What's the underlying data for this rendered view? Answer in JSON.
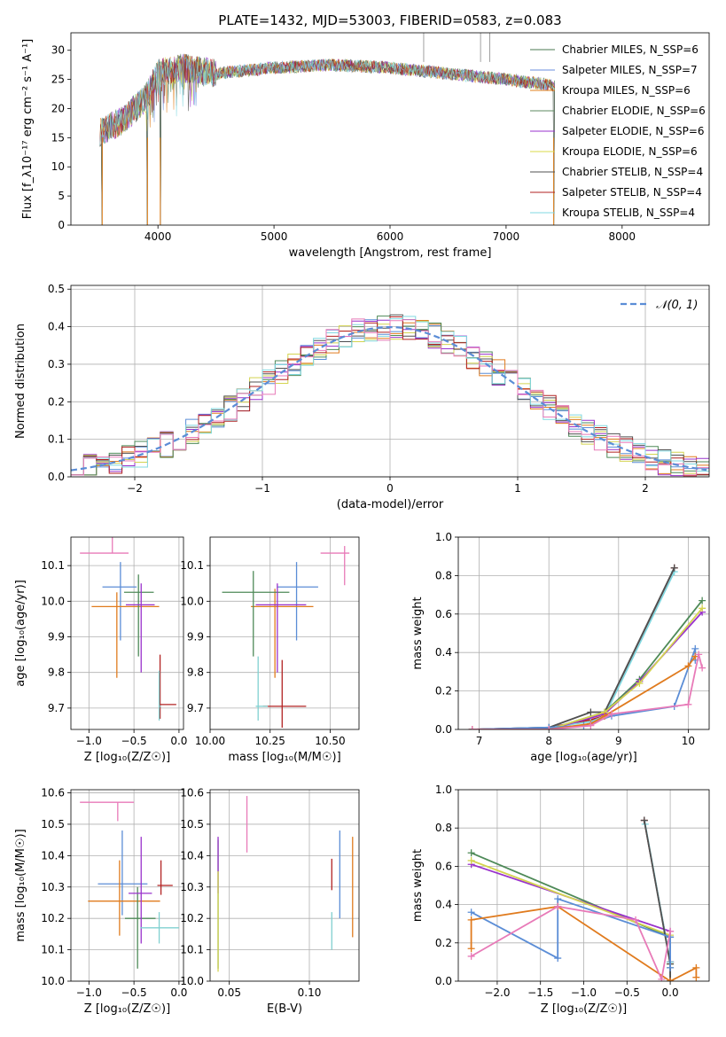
{
  "figure_title": "PLATE=1432, MJD=53003, FIBERID=0583, z=0.083",
  "colors": [
    "#6b8e23",
    "#1f77b4",
    "#e08020",
    "#4e8a58",
    "#9932cc",
    "#d4d450",
    "#505050",
    "#b22222",
    "#80d8e0"
  ],
  "chart_data": [
    {
      "id": "spectrum",
      "type": "line",
      "xlabel": "wavelength [Angstrom, rest frame]",
      "ylabel": "Flux [f_λ10⁻¹⁷ erg cm⁻² s⁻¹ A⁻¹]",
      "xlim": [
        3250,
        8750
      ],
      "ylim": [
        0,
        33
      ],
      "xticks": [
        4000,
        5000,
        6000,
        7000,
        8000
      ],
      "yticks": [
        0,
        5,
        10,
        15,
        20,
        25,
        30
      ],
      "grid": false,
      "legend_position": "top-right",
      "legend": [
        {
          "label": "Chabrier MILES, N_SSP=6",
          "color": "#4a7a50"
        },
        {
          "label": "Salpeter MILES, N_SSP=7",
          "color": "#6a8ede"
        },
        {
          "label": "Kroupa MILES, N_SSP=6",
          "color": "#e0801e"
        },
        {
          "label": "Chabrier ELODIE, N_SSP=6",
          "color": "#5e8a62"
        },
        {
          "label": "Salpeter ELODIE, N_SSP=6",
          "color": "#9932cc"
        },
        {
          "label": "Kroupa ELODIE, N_SSP=6",
          "color": "#d8d848"
        },
        {
          "label": "Chabrier STELIB, N_SSP=4",
          "color": "#505050"
        },
        {
          "label": "Salpeter STELIB, N_SSP=4",
          "color": "#b22222"
        },
        {
          "label": "Kroupa STELIB, N_SSP=4",
          "color": "#80d8e0"
        }
      ],
      "series_note": "spectrum traced from continuum ~15 at 3500 A rising to ~27-28 plateau with absorption features",
      "continuum": {
        "x": [
          3500,
          3700,
          3900,
          4000,
          4200,
          4500,
          5000,
          5500,
          6000,
          6500,
          7000,
          7400
        ],
        "y": [
          16,
          18,
          22,
          26,
          27,
          26,
          27,
          27.5,
          27,
          26,
          25,
          24
        ]
      },
      "drops": [
        3520,
        3910,
        4020,
        7410
      ],
      "spikes": [
        6290,
        6860,
        6780
      ]
    },
    {
      "id": "residuals",
      "type": "line",
      "xlabel": "(data-model)/error",
      "ylabel": "Normed distribution",
      "xlim": [
        -2.5,
        2.5
      ],
      "ylim": [
        0,
        0.51
      ],
      "xticks": [
        -2,
        -1,
        0,
        1,
        2
      ],
      "yticks": [
        0.0,
        0.1,
        0.2,
        0.3,
        0.4,
        0.5
      ],
      "grid": true,
      "legend_position": "top-right",
      "legend": [
        {
          "label": "𝒩(0, 1)",
          "color": "#5b8dd6"
        }
      ],
      "gaussian": {
        "mu": 0,
        "sigma": 1
      }
    },
    {
      "id": "age_vs_Z",
      "type": "scatter",
      "xlabel": "Z [log₁₀(Z/Z☉)]",
      "ylabel": "age  [log₁₀(age/yr)]",
      "xlim": [
        -1.2,
        0.05
      ],
      "ylim": [
        9.64,
        10.18
      ],
      "xticks": [
        -1.0,
        -0.5,
        0.0
      ],
      "yticks": [
        9.7,
        9.8,
        9.9,
        10.0,
        10.1
      ],
      "grid": true,
      "points": [
        {
          "x": -0.74,
          "y": 10.135,
          "xerr": [
            0.36,
            0.18
          ],
          "yerr": [
            0.0,
            0.05
          ],
          "color": "#e87ab8"
        },
        {
          "x": -0.65,
          "y": 10.04,
          "xerr": [
            0.2,
            0.18
          ],
          "yerr": [
            0.15,
            0.07
          ],
          "color": "#5b8dd6"
        },
        {
          "x": -0.69,
          "y": 9.985,
          "xerr": [
            0.28,
            0.47
          ],
          "yerr": [
            0.2,
            0.04
          ],
          "color": "#e07b1e"
        },
        {
          "x": -0.45,
          "y": 10.025,
          "xerr": [
            0.16,
            0.17
          ],
          "yerr": [
            0.18,
            0.05
          ],
          "color": "#4e8a58"
        },
        {
          "x": -0.42,
          "y": 9.99,
          "xerr": [
            0.17,
            0.15
          ],
          "yerr": [
            0.19,
            0.06
          ],
          "color": "#9932cc"
        },
        {
          "x": -0.21,
          "y": 9.71,
          "xerr": [
            0.01,
            0.18
          ],
          "yerr": [
            0.04,
            0.14
          ],
          "color": "#b22222"
        },
        {
          "x": -0.22,
          "y": 9.705,
          "xerr": [
            0.0,
            0.02
          ],
          "yerr": [
            0.04,
            0.1
          ],
          "color": "#80d0d0"
        }
      ]
    },
    {
      "id": "age_vs_mass",
      "type": "scatter",
      "xlabel": "mass [log₁₀(M/M☉)]",
      "ylabel": "",
      "xlim": [
        10.0,
        10.62
      ],
      "ylim": [
        9.64,
        10.18
      ],
      "xticks": [
        10.0,
        10.25,
        10.5
      ],
      "yticks": [
        9.7,
        9.8,
        9.9,
        10.0,
        10.1
      ],
      "grid": true,
      "points": [
        {
          "x": 10.56,
          "y": 10.135,
          "xerr": [
            0.1,
            0.02
          ],
          "yerr": [
            0.09,
            0.02
          ],
          "color": "#e87ab8"
        },
        {
          "x": 10.36,
          "y": 10.04,
          "xerr": [
            0.08,
            0.09
          ],
          "yerr": [
            0.15,
            0.07
          ],
          "color": "#5b8dd6"
        },
        {
          "x": 10.27,
          "y": 9.985,
          "xerr": [
            0.1,
            0.16
          ],
          "yerr": [
            0.2,
            0.05
          ],
          "color": "#e07b1e"
        },
        {
          "x": 10.18,
          "y": 10.025,
          "xerr": [
            0.13,
            0.15
          ],
          "yerr": [
            0.18,
            0.06
          ],
          "color": "#4e8a58"
        },
        {
          "x": 10.28,
          "y": 9.99,
          "xerr": [
            0.09,
            0.12
          ],
          "yerr": [
            0.19,
            0.06
          ],
          "color": "#9932cc"
        },
        {
          "x": 10.3,
          "y": 9.705,
          "xerr": [
            0.08,
            0.1
          ],
          "yerr": [
            0.06,
            0.13
          ],
          "color": "#b22222"
        },
        {
          "x": 10.2,
          "y": 9.705,
          "xerr": [
            0.01,
            0.04
          ],
          "yerr": [
            0.04,
            0.14
          ],
          "color": "#80d0d0"
        }
      ]
    },
    {
      "id": "weight_vs_age",
      "type": "line",
      "xlabel": "age  [log₁₀(age/yr)]",
      "ylabel": "mass weight",
      "xlim": [
        6.7,
        10.3
      ],
      "ylim": [
        0,
        1.0
      ],
      "xticks": [
        7,
        8,
        9,
        10
      ],
      "yticks": [
        0.0,
        0.2,
        0.4,
        0.6,
        0.8,
        1.0
      ],
      "grid": true,
      "series": [
        {
          "color": "#b22222",
          "x": [
            6.9,
            8.0,
            8.6,
            8.8,
            9.8
          ],
          "y": [
            0.0,
            0.01,
            0.05,
            0.07,
            0.84
          ]
        },
        {
          "color": "#80d8e0",
          "x": [
            6.9,
            8.0,
            8.6,
            8.8,
            9.8
          ],
          "y": [
            0.0,
            0.01,
            0.04,
            0.07,
            0.82
          ]
        },
        {
          "color": "#505050",
          "x": [
            6.9,
            8.0,
            8.6,
            8.8,
            9.8
          ],
          "y": [
            0.0,
            0.01,
            0.09,
            0.09,
            0.84
          ]
        },
        {
          "color": "#4e8a58",
          "x": [
            6.9,
            8.0,
            8.8,
            9.3,
            10.2
          ],
          "y": [
            0.0,
            0.0,
            0.09,
            0.26,
            0.67
          ]
        },
        {
          "color": "#9932cc",
          "x": [
            6.9,
            8.0,
            8.8,
            9.3,
            10.2
          ],
          "y": [
            0.0,
            0.0,
            0.08,
            0.25,
            0.61
          ]
        },
        {
          "color": "#d4d450",
          "x": [
            6.9,
            8.0,
            8.8,
            9.3,
            10.2
          ],
          "y": [
            0.0,
            0.0,
            0.09,
            0.24,
            0.63
          ]
        },
        {
          "color": "#5b8dd6",
          "x": [
            6.9,
            8.0,
            8.5,
            8.9,
            9.8,
            10.1,
            10.1
          ],
          "y": [
            0.0,
            0.01,
            0.02,
            0.07,
            0.12,
            0.42,
            0.36
          ]
        },
        {
          "color": "#e07b1e",
          "x": [
            6.9,
            8.0,
            8.6,
            8.8,
            10.0,
            10.1
          ],
          "y": [
            0.0,
            0.0,
            0.03,
            0.07,
            0.33,
            0.38
          ]
        },
        {
          "color": "#e87ab8",
          "x": [
            6.9,
            8.0,
            8.6,
            8.9,
            10.0,
            10.15,
            10.2
          ],
          "y": [
            0.0,
            0.0,
            0.02,
            0.08,
            0.13,
            0.39,
            0.32
          ]
        }
      ]
    },
    {
      "id": "mass_vs_Z",
      "type": "scatter",
      "xlabel": "Z [log₁₀(Z/Z☉)]",
      "ylabel": "mass [log₁₀(M/M☉)]",
      "xlim": [
        -1.2,
        0.05
      ],
      "ylim": [
        10.0,
        10.61
      ],
      "xticks": [
        -1.0,
        -0.5,
        0.0
      ],
      "yticks": [
        10.0,
        10.1,
        10.2,
        10.3,
        10.4,
        10.5,
        10.6
      ],
      "grid": true,
      "points": [
        {
          "x": -0.68,
          "y": 10.57,
          "xerr": [
            0.42,
            0.18
          ],
          "yerr": [
            0.06,
            0.0
          ],
          "color": "#e87ab8"
        },
        {
          "x": -0.63,
          "y": 10.31,
          "xerr": [
            0.27,
            0.28
          ],
          "yerr": [
            0.1,
            0.17
          ],
          "color": "#5b8dd6"
        },
        {
          "x": -0.66,
          "y": 10.255,
          "xerr": [
            0.35,
            0.45
          ],
          "yerr": [
            0.11,
            0.13
          ],
          "color": "#e07b1e"
        },
        {
          "x": -0.46,
          "y": 10.2,
          "xerr": [
            0.14,
            0.2
          ],
          "yerr": [
            0.16,
            0.1
          ],
          "color": "#4e8a58"
        },
        {
          "x": -0.42,
          "y": 10.28,
          "xerr": [
            0.14,
            0.12
          ],
          "yerr": [
            0.16,
            0.18
          ],
          "color": "#9932cc"
        },
        {
          "x": -0.2,
          "y": 10.305,
          "xerr": [
            0.04,
            0.13
          ],
          "yerr": [
            0.03,
            0.08
          ],
          "color": "#b22222"
        },
        {
          "x": -0.22,
          "y": 10.17,
          "xerr": [
            0.21,
            0.22
          ],
          "yerr": [
            0.05,
            0.05
          ],
          "color": "#80d0d0"
        }
      ]
    },
    {
      "id": "mass_vs_ebv",
      "type": "scatter",
      "xlabel": "E(B-V)",
      "ylabel": "",
      "xlim": [
        0.038,
        0.131
      ],
      "ylim": [
        10.0,
        10.61
      ],
      "xticks": [
        0.05,
        0.1
      ],
      "yticks": [
        10.0,
        10.1,
        10.2,
        10.3,
        10.4,
        10.5,
        10.6
      ],
      "grid": true,
      "points": [
        {
          "x": 0.061,
          "y": 10.5,
          "yerr": [
            0.09,
            0.09
          ],
          "color": "#e87ab8"
        },
        {
          "x": 0.119,
          "y": 10.33,
          "yerr": [
            0.13,
            0.15
          ],
          "color": "#5b8dd6"
        },
        {
          "x": 0.127,
          "y": 10.3,
          "yerr": [
            0.16,
            0.16
          ],
          "color": "#e07b1e"
        },
        {
          "x": 0.043,
          "y": 10.29,
          "yerr": [
            0.25,
            0.16
          ],
          "color": "#4e8a58"
        },
        {
          "x": 0.043,
          "y": 10.37,
          "yerr": [
            0.09,
            0.09
          ],
          "color": "#9932cc"
        },
        {
          "x": 0.043,
          "y": 10.2,
          "yerr": [
            0.17,
            0.15
          ],
          "color": "#d4d450"
        },
        {
          "x": 0.114,
          "y": 10.33,
          "yerr": [
            0.04,
            0.06
          ],
          "color": "#b22222"
        },
        {
          "x": 0.114,
          "y": 10.16,
          "yerr": [
            0.06,
            0.06
          ],
          "color": "#80d0d0"
        }
      ]
    },
    {
      "id": "weight_vs_Z",
      "type": "line",
      "xlabel": "Z [log₁₀(Z/Z☉)]",
      "ylabel": "mass weight",
      "xlim": [
        -2.45,
        0.45
      ],
      "ylim": [
        0,
        1.0
      ],
      "xticks": [
        -2.0,
        -1.5,
        -1.0,
        -0.5,
        0.0
      ],
      "yticks": [
        0.0,
        0.2,
        0.4,
        0.6,
        0.8,
        1.0
      ],
      "grid": true,
      "series": [
        {
          "color": "#4e8a58",
          "x": [
            -2.3,
            0.0,
            0.0
          ],
          "y": [
            0.67,
            0.23,
            0.07
          ]
        },
        {
          "color": "#9932cc",
          "x": [
            -2.3,
            0.0,
            0.0
          ],
          "y": [
            0.61,
            0.26,
            0.1
          ]
        },
        {
          "color": "#d4d450",
          "x": [
            -2.3,
            0.0,
            0.0
          ],
          "y": [
            0.63,
            0.24,
            0.09
          ]
        },
        {
          "color": "#b22222",
          "x": [
            -0.3,
            0.0,
            0.0
          ],
          "y": [
            0.84,
            0.1,
            0.0
          ]
        },
        {
          "color": "#80d8e0",
          "x": [
            -0.29,
            0.0,
            0.0
          ],
          "y": [
            0.82,
            0.1,
            0.0
          ]
        },
        {
          "color": "#505050",
          "x": [
            -0.3,
            0.0,
            0.0
          ],
          "y": [
            0.84,
            0.09,
            0.0
          ]
        },
        {
          "color": "#5b8dd6",
          "x": [
            -2.3,
            -1.3,
            -1.3,
            0.0,
            0.0
          ],
          "y": [
            0.36,
            0.12,
            0.43,
            0.23,
            0.07
          ]
        },
        {
          "color": "#e07b1e",
          "x": [
            -2.3,
            -2.3,
            -1.3,
            0.0,
            0.3,
            0.3
          ],
          "y": [
            0.17,
            0.32,
            0.39,
            0.0,
            0.07,
            0.02
          ]
        },
        {
          "color": "#e87ab8",
          "x": [
            -2.3,
            -1.3,
            -0.4,
            -0.1,
            0.0
          ],
          "y": [
            0.13,
            0.39,
            0.32,
            0.01,
            0.26
          ]
        }
      ]
    }
  ]
}
